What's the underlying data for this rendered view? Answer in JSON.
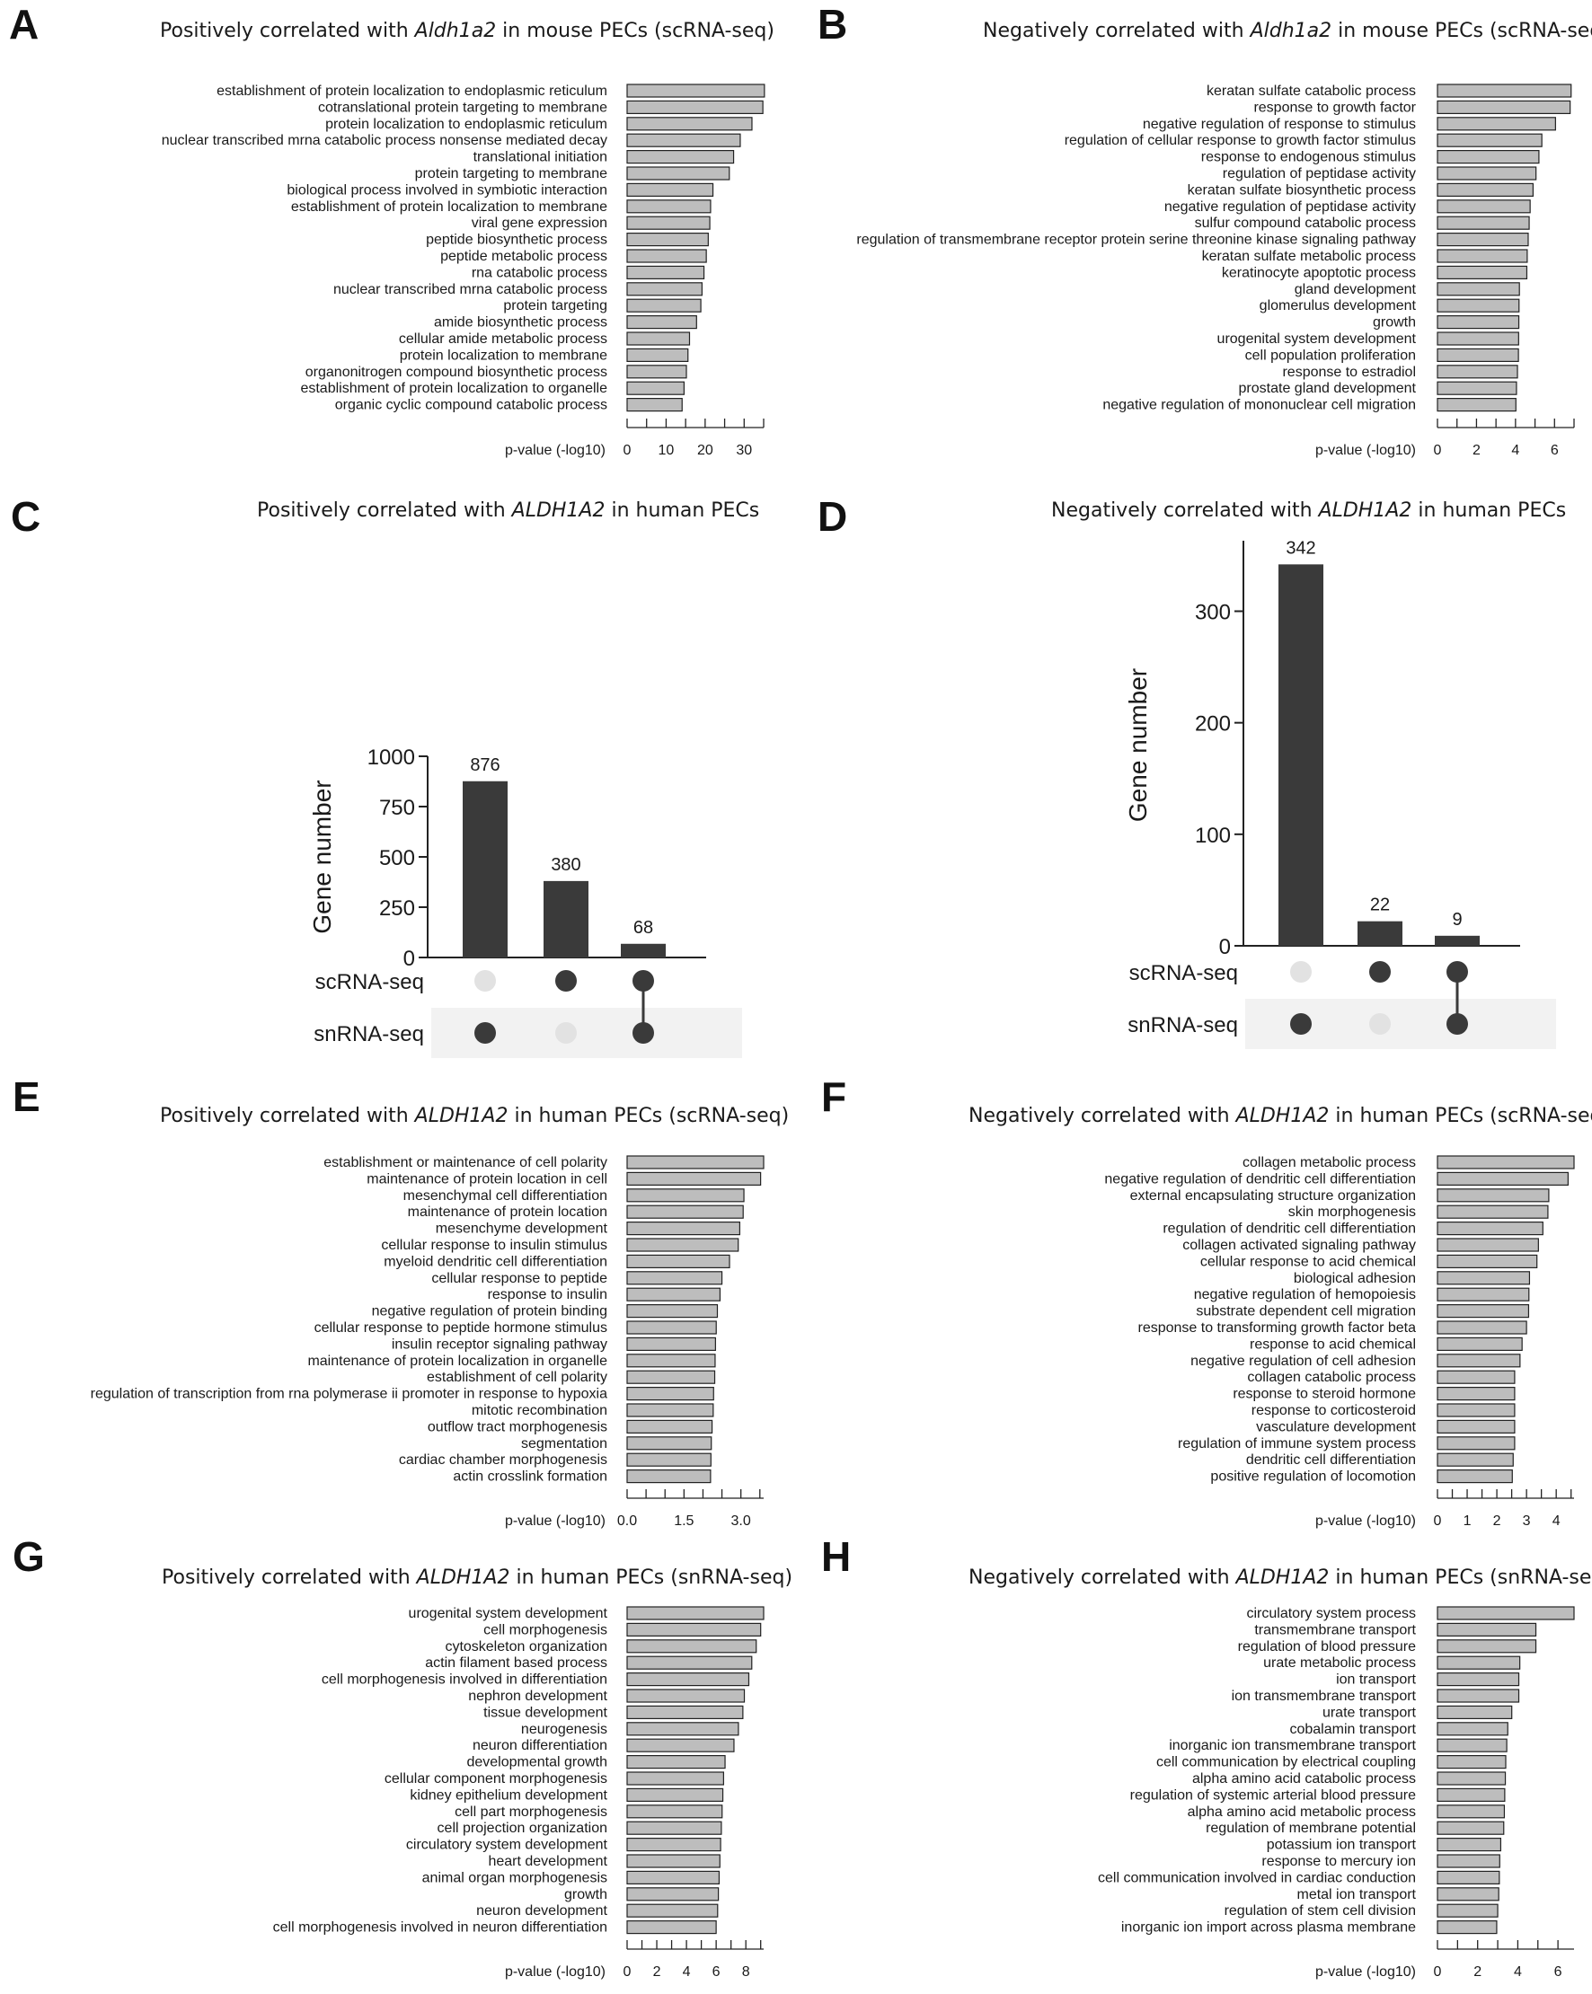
{
  "panels": {
    "A": {
      "label": "A",
      "title_pre": "Positively correlated with ",
      "title_gene": "Aldh1a2",
      "title_post": " in mouse PECs (scRNA-seq)"
    },
    "B": {
      "label": "B",
      "title_pre": "Negatively correlated with ",
      "title_gene": "Aldh1a2",
      "title_post": " in mouse PECs (scRNA-seq)"
    },
    "C": {
      "label": "C",
      "title_pre": "Positively correlated with ",
      "title_gene": "ALDH1A2",
      "title_post": " in human PECs"
    },
    "D": {
      "label": "D",
      "title_pre": "Negatively correlated with ",
      "title_gene": "ALDH1A2",
      "title_post": " in human PECs"
    },
    "E": {
      "label": "E",
      "title_pre": "Positively correlated with ",
      "title_gene": "ALDH1A2",
      "title_post": " in human PECs (scRNA-seq)"
    },
    "F": {
      "label": "F",
      "title_pre": "Negatively correlated with ",
      "title_gene": "ALDH1A2",
      "title_post": " in human PECs (scRNA-seq)"
    },
    "G": {
      "label": "G",
      "title_pre": "Positively correlated with ",
      "title_gene": "ALDH1A2",
      "title_post": " in human PECs (snRNA-seq)"
    },
    "H": {
      "label": "H",
      "title_pre": "Negatively correlated with ",
      "title_gene": "ALDH1A2",
      "title_post": " in human PECs (snRNA-seq)"
    }
  },
  "chart_data": [
    {
      "panel": "A",
      "type": "bar",
      "orientation": "horizontal",
      "xlabel": "p-value (-log10)",
      "xlim": [
        0,
        35
      ],
      "ticks": [
        0,
        10,
        20,
        30
      ],
      "minor_step": 5,
      "categories": [
        "establishment of protein localization to endoplasmic reticulum",
        "cotranslational protein targeting to membrane",
        "protein localization to endoplasmic reticulum",
        "nuclear transcribed mrna catabolic process nonsense mediated decay",
        "translational initiation",
        "protein targeting to membrane",
        "biological process involved in symbiotic interaction",
        "establishment of protein localization to membrane",
        "viral gene expression",
        "peptide biosynthetic process",
        "peptide metabolic process",
        "rna catabolic process",
        "nuclear transcribed mrna catabolic process",
        "protein targeting",
        "amide biosynthetic process",
        "cellular amide metabolic process",
        "protein localization to membrane",
        "organonitrogen compound biosynthetic process",
        "establishment of protein localization to organelle",
        "organic cyclic compound catabolic process"
      ],
      "values": [
        35.2,
        34.8,
        32.0,
        29.0,
        27.3,
        26.2,
        22.0,
        21.4,
        21.2,
        20.8,
        20.3,
        19.7,
        19.2,
        18.9,
        17.8,
        16.0,
        15.6,
        15.2,
        14.6,
        14.1
      ]
    },
    {
      "panel": "B",
      "type": "bar",
      "orientation": "horizontal",
      "xlabel": "p-value (-log10)",
      "xlim": [
        0,
        7
      ],
      "ticks": [
        0,
        2,
        4,
        6
      ],
      "minor_step": 1,
      "categories": [
        "keratan sulfate catabolic process",
        "response to growth factor",
        "negative regulation of response to stimulus",
        "regulation of cellular response to growth factor stimulus",
        "response to endogenous stimulus",
        "regulation of peptidase activity",
        "keratan sulfate biosynthetic process",
        "negative regulation of peptidase activity",
        "sulfur compound catabolic process",
        "regulation of transmembrane receptor protein serine threonine kinase signaling pathway",
        "keratan sulfate metabolic process",
        "keratinocyte apoptotic process",
        "gland development",
        "glomerulus development",
        "growth",
        "urogenital system development",
        "cell population proliferation",
        "response to estradiol",
        "prostate gland development",
        "negative regulation of mononuclear cell migration"
      ],
      "values": [
        6.85,
        6.8,
        6.05,
        5.35,
        5.2,
        5.05,
        4.9,
        4.75,
        4.7,
        4.65,
        4.6,
        4.58,
        4.2,
        4.18,
        4.17,
        4.16,
        4.15,
        4.1,
        4.05,
        4.02
      ]
    },
    {
      "panel": "C",
      "type": "bar",
      "subtype": "upset",
      "ylabel": "Gene number",
      "ylim": [
        0,
        1000
      ],
      "ticks": [
        0,
        250,
        500,
        750,
        1000
      ],
      "sets": [
        "scRNA-seq",
        "snRNA-seq"
      ],
      "values": [
        876,
        380,
        68
      ],
      "membership": [
        [
          false,
          true
        ],
        [
          true,
          false
        ],
        [
          true,
          true
        ]
      ]
    },
    {
      "panel": "D",
      "type": "bar",
      "subtype": "upset",
      "ylabel": "Gene number",
      "ylim": [
        0,
        360
      ],
      "ticks": [
        0,
        100,
        200,
        300
      ],
      "sets": [
        "scRNA-seq",
        "snRNA-seq"
      ],
      "values": [
        342,
        22,
        9
      ],
      "membership": [
        [
          false,
          true
        ],
        [
          true,
          false
        ],
        [
          true,
          true
        ]
      ]
    },
    {
      "panel": "E",
      "type": "bar",
      "orientation": "horizontal",
      "xlabel": "p-value (-log10)",
      "xlim": [
        0,
        3.6
      ],
      "ticks": [
        0.0,
        1.5,
        3.0
      ],
      "tick_labels": [
        "0.0",
        "1.5",
        "3.0"
      ],
      "minor_step": 0.5,
      "categories": [
        "establishment or maintenance of cell polarity",
        "maintenance of protein location in cell",
        "mesenchymal cell differentiation",
        "maintenance of protein location",
        "mesenchyme development",
        "cellular response to insulin stimulus",
        "myeloid dendritic cell differentiation",
        "cellular response to peptide",
        "response to insulin",
        "negative regulation of protein binding",
        "cellular response to peptide hormone stimulus",
        "insulin receptor signaling pathway",
        "maintenance of protein localization in organelle",
        "establishment of cell polarity",
        "regulation of transcription from rna polymerase ii promoter in response to hypoxia",
        "mitotic recombination",
        "outflow tract morphogenesis",
        "segmentation",
        "cardiac chamber morphogenesis",
        "actin crosslink formation"
      ],
      "values": [
        3.6,
        3.52,
        3.08,
        3.06,
        2.97,
        2.93,
        2.7,
        2.5,
        2.45,
        2.38,
        2.35,
        2.33,
        2.32,
        2.31,
        2.28,
        2.27,
        2.24,
        2.22,
        2.21,
        2.2
      ]
    },
    {
      "panel": "F",
      "type": "bar",
      "orientation": "horizontal",
      "xlabel": "p-value (-log10)",
      "xlim": [
        0,
        4.6
      ],
      "ticks": [
        0,
        1,
        2,
        3,
        4
      ],
      "minor_step": 0.5,
      "categories": [
        "collagen metabolic process",
        "negative regulation of dendritic cell differentiation",
        "external encapsulating structure organization",
        "skin morphogenesis",
        "regulation of dendritic cell differentiation",
        "collagen activated signaling pathway",
        "cellular response to acid chemical",
        "biological adhesion",
        "negative regulation of hemopoiesis",
        "substrate dependent cell migration",
        "response to transforming growth factor beta",
        "response to acid chemical",
        "negative regulation of cell adhesion",
        "collagen catabolic process",
        "response to steroid hormone",
        "response to corticosteroid",
        "vasculature development",
        "regulation of immune system process",
        "dendritic cell differentiation",
        "positive regulation of locomotion"
      ],
      "values": [
        4.6,
        4.4,
        3.75,
        3.72,
        3.55,
        3.4,
        3.35,
        3.1,
        3.08,
        3.07,
        3.0,
        2.85,
        2.78,
        2.6,
        2.6,
        2.6,
        2.6,
        2.6,
        2.55,
        2.52
      ]
    },
    {
      "panel": "G",
      "type": "bar",
      "orientation": "horizontal",
      "xlabel": "p-value (-log10)",
      "xlim": [
        0,
        9.2
      ],
      "ticks": [
        0,
        2,
        4,
        6,
        8
      ],
      "minor_step": 1,
      "categories": [
        "urogenital system development",
        "cell morphogenesis",
        "cytoskeleton organization",
        "actin filament based process",
        "cell morphogenesis involved in differentiation",
        "nephron development",
        "tissue development",
        "neurogenesis",
        "neuron differentiation",
        "developmental growth",
        "cellular component morphogenesis",
        "kidney epithelium development",
        "cell part morphogenesis",
        "cell projection organization",
        "circulatory system development",
        "heart development",
        "animal organ morphogenesis",
        "growth",
        "neuron development",
        "cell morphogenesis involved in neuron differentiation"
      ],
      "values": [
        9.2,
        9.0,
        8.7,
        8.4,
        8.2,
        7.9,
        7.8,
        7.5,
        7.2,
        6.6,
        6.5,
        6.45,
        6.4,
        6.35,
        6.3,
        6.25,
        6.2,
        6.15,
        6.1,
        6.0
      ]
    },
    {
      "panel": "H",
      "type": "bar",
      "orientation": "horizontal",
      "xlabel": "p-value (-log10)",
      "xlim": [
        0,
        6.8
      ],
      "ticks": [
        0,
        2,
        4,
        6
      ],
      "minor_step": 1,
      "categories": [
        "circulatory system process",
        "transmembrane transport",
        "regulation of blood pressure",
        "urate metabolic process",
        "ion transport",
        "ion transmembrane transport",
        "urate transport",
        "cobalamin transport",
        "inorganic ion transmembrane transport",
        "cell communication by electrical coupling",
        "alpha amino acid catabolic process",
        "regulation of systemic arterial blood pressure",
        "alpha amino acid metabolic process",
        "regulation of membrane potential",
        "potassium ion transport",
        "response to mercury ion",
        "cell communication involved in cardiac conduction",
        "metal ion transport",
        "regulation of stem cell division",
        "inorganic ion import across plasma membrane"
      ],
      "values": [
        6.8,
        4.9,
        4.9,
        4.1,
        4.05,
        4.05,
        3.7,
        3.5,
        3.45,
        3.4,
        3.38,
        3.35,
        3.33,
        3.3,
        3.15,
        3.1,
        3.08,
        3.05,
        3.0,
        2.95
      ]
    }
  ]
}
